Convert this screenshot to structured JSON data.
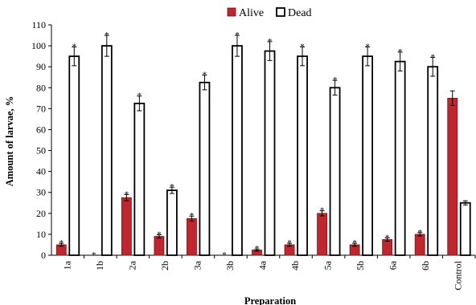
{
  "chart_data": {
    "type": "bar",
    "title": "",
    "xlabel": "Preparation",
    "ylabel": "Amount of larvae, %",
    "ylim": [
      0,
      110
    ],
    "yticks": [
      0,
      10,
      20,
      30,
      40,
      50,
      60,
      70,
      80,
      90,
      100,
      110
    ],
    "categories": [
      "1a",
      "1b",
      "2a",
      "2b",
      "3a",
      "3b",
      "4a",
      "4b",
      "5a",
      "5b",
      "6a",
      "6b",
      "Control"
    ],
    "legend_position": "top-center",
    "grid": false,
    "significance_marker": "*",
    "series": [
      {
        "name": "Alive",
        "color": "#c0262d",
        "values": [
          5,
          0,
          27.5,
          9,
          17.5,
          0,
          2.5,
          5,
          20,
          5,
          7.5,
          10,
          75
        ],
        "errors": [
          0.7,
          0,
          1.5,
          0.8,
          1.2,
          0,
          0.5,
          0.7,
          1.2,
          0.7,
          0.8,
          0.8,
          3.5
        ],
        "marked": [
          true,
          true,
          true,
          true,
          true,
          true,
          true,
          true,
          true,
          true,
          true,
          true,
          false
        ]
      },
      {
        "name": "Dead",
        "color": "#ffffff",
        "values": [
          95,
          100,
          72.5,
          31,
          82.5,
          100,
          97.5,
          95,
          80,
          95,
          92.5,
          90,
          25
        ],
        "errors": [
          4.5,
          5,
          3.5,
          1.5,
          3.5,
          5,
          4.5,
          4.5,
          3.5,
          4.5,
          4.5,
          4.5,
          1
        ],
        "marked": [
          true,
          true,
          true,
          true,
          true,
          true,
          true,
          true,
          true,
          true,
          true,
          true,
          false
        ]
      }
    ]
  }
}
